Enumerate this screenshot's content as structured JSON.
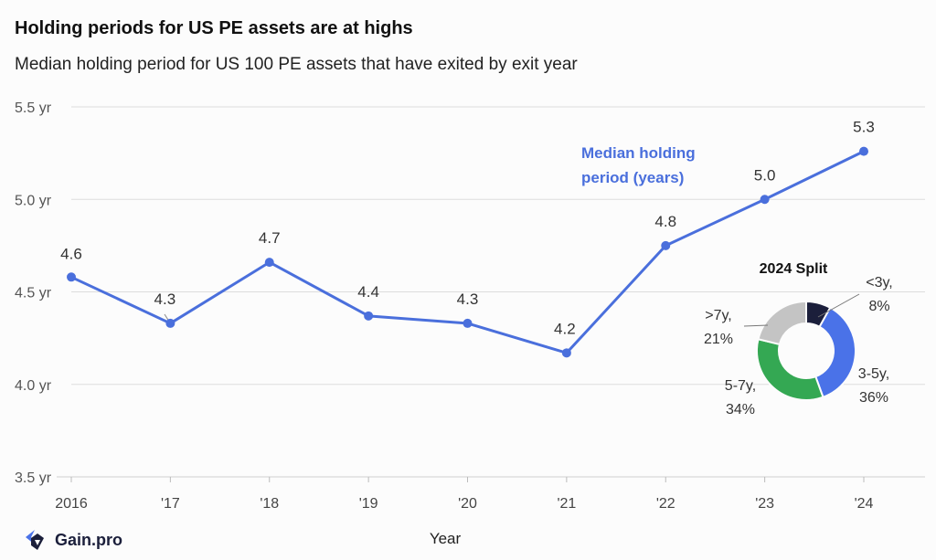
{
  "title": "Holding periods for US PE assets are at highs",
  "subtitle": "Median holding period for US 100 PE assets that have exited by exit year",
  "brand": "Gain.pro",
  "colors": {
    "line": "#4a6fdc",
    "grid": "#dddddd",
    "text": "#222222",
    "donut": [
      "#1b1f3b",
      "#4a72e8",
      "#34a853",
      "#c4c4c4"
    ]
  },
  "chart_data": [
    {
      "type": "line",
      "title": "Holding periods for US PE assets are at highs",
      "subtitle": "Median holding period for US 100 PE assets that have exited by exit year",
      "x": [
        "2016",
        "'17",
        "'18",
        "'19",
        "'20",
        "'21",
        "'22",
        "'23",
        "'24"
      ],
      "xlabel": "Year",
      "ylabel": "",
      "ylim": [
        3.5,
        5.5
      ],
      "yticks": [
        {
          "value": 3.5,
          "label": "3.5 yr"
        },
        {
          "value": 4.0,
          "label": "4.0 yr"
        },
        {
          "value": 4.5,
          "label": "4.5 yr"
        },
        {
          "value": 5.0,
          "label": "5.0 yr"
        },
        {
          "value": 5.5,
          "label": "5.5 yr"
        }
      ],
      "grid": true,
      "series": [
        {
          "name": "Median holding period (years)",
          "values": [
            4.58,
            4.33,
            4.66,
            4.37,
            4.33,
            4.17,
            4.75,
            5.0,
            5.26
          ],
          "labels": [
            "4.6",
            "4.3",
            "4.7",
            "4.4",
            "4.3",
            "4.2",
            "4.8",
            "5.0",
            "5.3"
          ]
        }
      ],
      "annotations": [
        "Median holding",
        "period (years)"
      ]
    },
    {
      "type": "pie",
      "title": "2024 Split",
      "categories": [
        "<3y",
        "3-5y",
        "5-7y",
        ">7y"
      ],
      "values": [
        8,
        36,
        34,
        21
      ],
      "labels": [
        "8%",
        "36%",
        "34%",
        "21%"
      ]
    }
  ]
}
